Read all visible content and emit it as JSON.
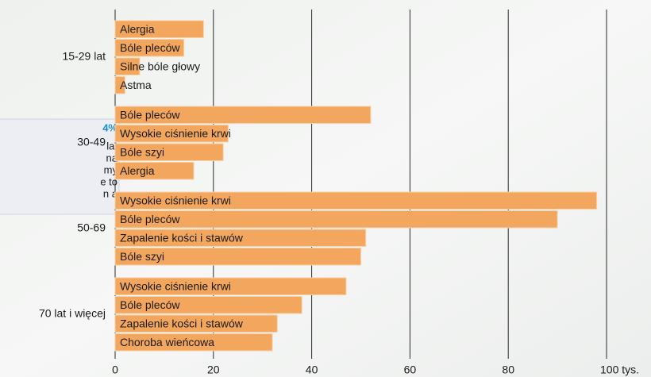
{
  "chart_data": {
    "type": "bar",
    "orientation": "horizontal",
    "groups": [
      {
        "name": "15-29 lat",
        "bars": [
          {
            "label": "Alergia",
            "value": 18
          },
          {
            "label": "Bóle pleców",
            "value": 14
          },
          {
            "label": "Silne bóle głowy",
            "value": 5
          },
          {
            "label": "Astma",
            "value": 2
          }
        ]
      },
      {
        "name": "30-49",
        "bars": [
          {
            "label": "Bóle pleców",
            "value": 52
          },
          {
            "label": "Wysokie ciśnienie krwi",
            "value": 23
          },
          {
            "label": "Bóle szyi",
            "value": 22
          },
          {
            "label": "Alergia",
            "value": 16
          }
        ]
      },
      {
        "name": "50-69",
        "bars": [
          {
            "label": "Wysokie ciśnienie krwi",
            "value": 98
          },
          {
            "label": "Bóle pleców",
            "value": 90
          },
          {
            "label": "Zapalenie kości i stawów",
            "value": 51
          },
          {
            "label": "Bóle szyi",
            "value": 50
          }
        ]
      },
      {
        "name": "70 lat i więcej",
        "bars": [
          {
            "label": "Wysokie ciśnienie krwi",
            "value": 47
          },
          {
            "label": "Bóle pleców",
            "value": 38
          },
          {
            "label": "Zapalenie kości i stawów",
            "value": 33
          },
          {
            "label": "Choroba wieńcowa",
            "value": 32
          }
        ]
      }
    ],
    "color": "#f2a65e",
    "xlim": [
      0,
      100
    ],
    "xticks": [
      0,
      20,
      40,
      60,
      80,
      {
        "value": 100,
        "label": "100 tys."
      }
    ],
    "grid": true
  },
  "sidebar": {
    "highlight": "4%",
    "lines": [
      "lat",
      "na",
      "my",
      "e to",
      "n a"
    ]
  }
}
